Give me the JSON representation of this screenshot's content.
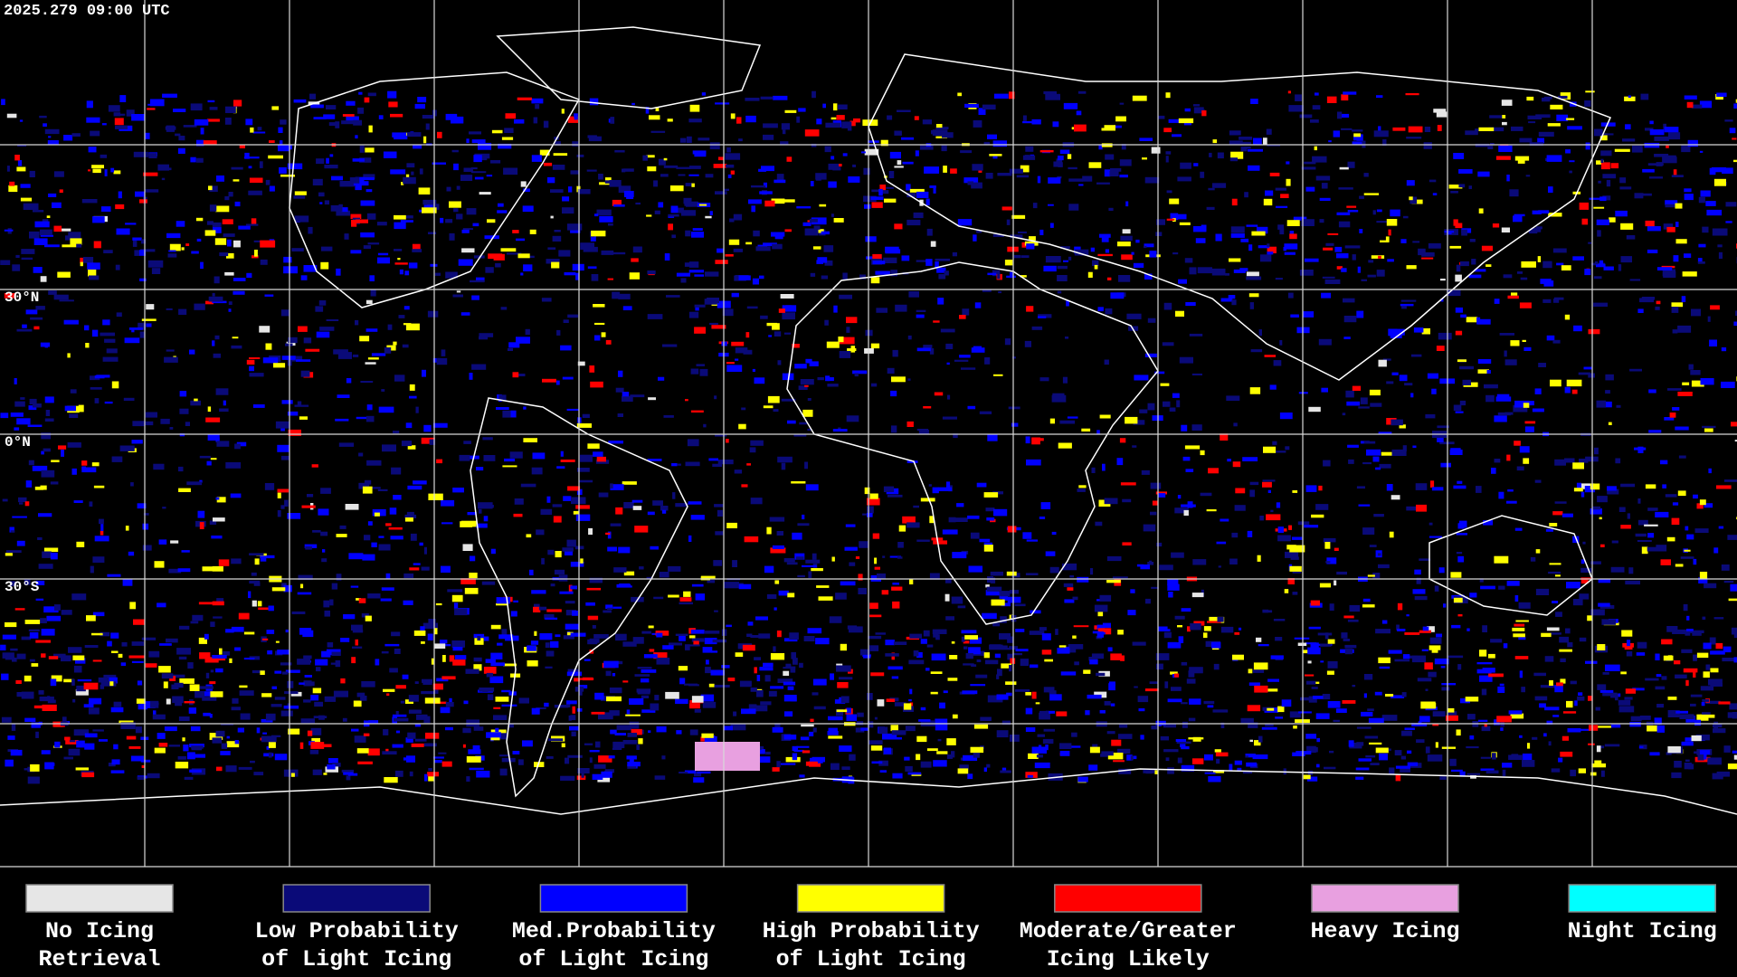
{
  "header": {
    "timestamp": "2025.279 09:00 UTC"
  },
  "map": {
    "latitude_labels": [
      "30°N",
      "0°N",
      "30°S"
    ]
  },
  "legend": {
    "items": [
      {
        "label_lines": [
          "No Icing",
          "Retrieval"
        ],
        "color": "#e6e6e6"
      },
      {
        "label_lines": [
          "Low Probability",
          "of Light Icing"
        ],
        "color": "#0a0a78"
      },
      {
        "label_lines": [
          "Med.Probability",
          "of Light Icing"
        ],
        "color": "#0000ff"
      },
      {
        "label_lines": [
          "High Probability",
          "of Light Icing"
        ],
        "color": "#ffff00"
      },
      {
        "label_lines": [
          "Moderate/Greater",
          "Icing Likely"
        ],
        "color": "#ff0000"
      },
      {
        "label_lines": [
          "Heavy Icing"
        ],
        "color": "#e8a0e0"
      },
      {
        "label_lines": [
          "Night Icing"
        ],
        "color": "#00ffff"
      }
    ]
  }
}
